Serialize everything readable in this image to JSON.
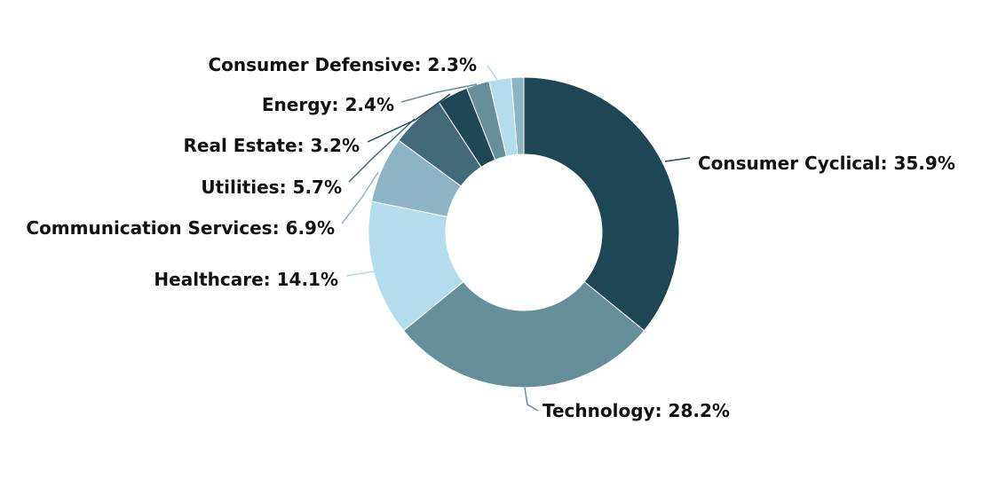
{
  "chart_data": {
    "type": "pie",
    "donut": true,
    "slices": [
      {
        "category": "Consumer Cyclical",
        "value": 35.9,
        "label": "Consumer Cyclical: 35.9%",
        "color": "#1e4756"
      },
      {
        "category": "Technology",
        "value": 28.2,
        "label": "Technology: 28.2%",
        "color": "#668f9c"
      },
      {
        "category": "Healthcare",
        "value": 14.1,
        "label": "Healthcare: 14.1%",
        "color": "#b3dcec"
      },
      {
        "category": "Communication Services",
        "value": 6.9,
        "label": "Communication Services: 6.9%",
        "color": "#8db4c4"
      },
      {
        "category": "Utilities",
        "value": 5.7,
        "label": "Utilities: 5.7%",
        "color": "#436a79"
      },
      {
        "category": "Real Estate",
        "value": 3.2,
        "label": "Real Estate: 3.2%",
        "color": "#1e4756"
      },
      {
        "category": "Energy",
        "value": 2.4,
        "label": "Energy: 2.4%",
        "color": "#668f9c"
      },
      {
        "category": "Consumer Defensive",
        "value": 2.3,
        "label": "Consumer Defensive: 2.3%",
        "color": "#b3dcec"
      },
      {
        "category": "",
        "value": 1.3,
        "label": "",
        "color": "#8db4c4"
      }
    ]
  }
}
